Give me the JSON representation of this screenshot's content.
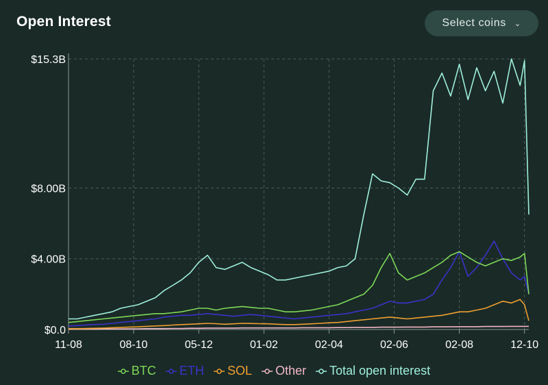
{
  "header": {
    "title": "Open Interest",
    "select_label": "Select coins",
    "select_icon": "chevron-down-icon"
  },
  "chart_data": {
    "type": "line",
    "title": "Open Interest",
    "ylabel": "",
    "xlabel": "",
    "ylim": [
      0,
      15.3
    ],
    "yticks": [
      {
        "value": 0,
        "label": "$0.0"
      },
      {
        "value": 4,
        "label": "$4.00B"
      },
      {
        "value": 8,
        "label": "$8.00B"
      },
      {
        "value": 15.3,
        "label": "$15.3B"
      }
    ],
    "xticks": [
      {
        "value": 0,
        "label": "11-08"
      },
      {
        "value": 15,
        "label": "08-10"
      },
      {
        "value": 30,
        "label": "05-12"
      },
      {
        "value": 45,
        "label": "01-02"
      },
      {
        "value": 60,
        "label": "02-04"
      },
      {
        "value": 75,
        "label": "02-06"
      },
      {
        "value": 90,
        "label": "02-08"
      },
      {
        "value": 105,
        "label": "12-10"
      }
    ],
    "xlim": [
      0,
      106
    ],
    "grid": true,
    "legend_position": "bottom",
    "x": [
      0,
      2,
      4,
      6,
      8,
      10,
      12,
      14,
      16,
      18,
      20,
      22,
      24,
      26,
      28,
      30,
      32,
      34,
      36,
      38,
      40,
      42,
      44,
      46,
      48,
      50,
      52,
      54,
      56,
      58,
      60,
      62,
      64,
      66,
      68,
      70,
      72,
      74,
      76,
      78,
      80,
      82,
      84,
      86,
      88,
      90,
      92,
      94,
      96,
      98,
      100,
      102,
      104,
      105,
      106
    ],
    "series": [
      {
        "name": "BTC",
        "color": "#7ed957",
        "values": [
          0.4,
          0.45,
          0.5,
          0.55,
          0.6,
          0.65,
          0.7,
          0.75,
          0.8,
          0.85,
          0.9,
          0.9,
          0.95,
          1.0,
          1.1,
          1.2,
          1.2,
          1.1,
          1.2,
          1.25,
          1.3,
          1.25,
          1.2,
          1.2,
          1.1,
          1.0,
          1.0,
          1.05,
          1.1,
          1.2,
          1.3,
          1.4,
          1.6,
          1.8,
          2.0,
          2.5,
          3.5,
          4.3,
          3.2,
          2.8,
          3.0,
          3.2,
          3.5,
          3.8,
          4.2,
          4.4,
          4.1,
          3.8,
          3.6,
          3.8,
          4.0,
          3.9,
          4.1,
          4.3,
          2.0
        ]
      },
      {
        "name": "ETH",
        "color": "#3a33c9",
        "values": [
          0.2,
          0.22,
          0.25,
          0.28,
          0.3,
          0.35,
          0.4,
          0.45,
          0.5,
          0.55,
          0.6,
          0.7,
          0.75,
          0.8,
          0.8,
          0.85,
          0.9,
          0.85,
          0.8,
          0.75,
          0.8,
          0.85,
          0.8,
          0.75,
          0.7,
          0.65,
          0.6,
          0.65,
          0.7,
          0.75,
          0.8,
          0.85,
          0.9,
          1.0,
          1.1,
          1.2,
          1.4,
          1.6,
          1.5,
          1.5,
          1.6,
          1.7,
          2.0,
          2.8,
          3.5,
          4.4,
          3.0,
          3.5,
          4.2,
          5.0,
          4.0,
          3.2,
          2.8,
          3.0,
          2.0
        ]
      },
      {
        "name": "SOL",
        "color": "#f0a030",
        "values": [
          0.05,
          0.05,
          0.06,
          0.07,
          0.08,
          0.1,
          0.12,
          0.14,
          0.15,
          0.18,
          0.2,
          0.22,
          0.25,
          0.28,
          0.3,
          0.32,
          0.35,
          0.33,
          0.3,
          0.32,
          0.35,
          0.34,
          0.33,
          0.32,
          0.3,
          0.28,
          0.28,
          0.3,
          0.32,
          0.35,
          0.38,
          0.4,
          0.45,
          0.5,
          0.55,
          0.6,
          0.65,
          0.7,
          0.65,
          0.6,
          0.65,
          0.7,
          0.75,
          0.8,
          0.9,
          1.0,
          1.0,
          1.1,
          1.2,
          1.4,
          1.6,
          1.5,
          1.7,
          1.4,
          0.5
        ]
      },
      {
        "name": "Other",
        "color": "#f2b8c6",
        "values": [
          0.02,
          0.02,
          0.02,
          0.02,
          0.03,
          0.03,
          0.03,
          0.04,
          0.04,
          0.05,
          0.05,
          0.05,
          0.06,
          0.06,
          0.07,
          0.07,
          0.08,
          0.08,
          0.08,
          0.08,
          0.09,
          0.09,
          0.09,
          0.09,
          0.09,
          0.09,
          0.09,
          0.1,
          0.1,
          0.1,
          0.1,
          0.11,
          0.11,
          0.12,
          0.12,
          0.12,
          0.13,
          0.13,
          0.13,
          0.14,
          0.14,
          0.14,
          0.15,
          0.15,
          0.15,
          0.16,
          0.16,
          0.16,
          0.17,
          0.17,
          0.17,
          0.18,
          0.18,
          0.18,
          0.18
        ]
      },
      {
        "name": "Total open interest",
        "color": "#9ff0dc",
        "values": [
          0.6,
          0.6,
          0.7,
          0.8,
          0.9,
          1.0,
          1.2,
          1.3,
          1.4,
          1.6,
          1.8,
          2.2,
          2.5,
          2.8,
          3.2,
          3.8,
          4.2,
          3.5,
          3.4,
          3.6,
          3.8,
          3.5,
          3.3,
          3.1,
          2.8,
          2.8,
          2.9,
          3.0,
          3.1,
          3.2,
          3.3,
          3.5,
          3.6,
          4.0,
          6.5,
          8.8,
          8.4,
          8.3,
          8.0,
          7.6,
          8.5,
          8.5,
          13.5,
          14.5,
          13.2,
          15.0,
          13.0,
          14.8,
          13.5,
          14.6,
          12.8,
          15.3,
          13.8,
          15.2,
          6.5
        ]
      }
    ]
  }
}
